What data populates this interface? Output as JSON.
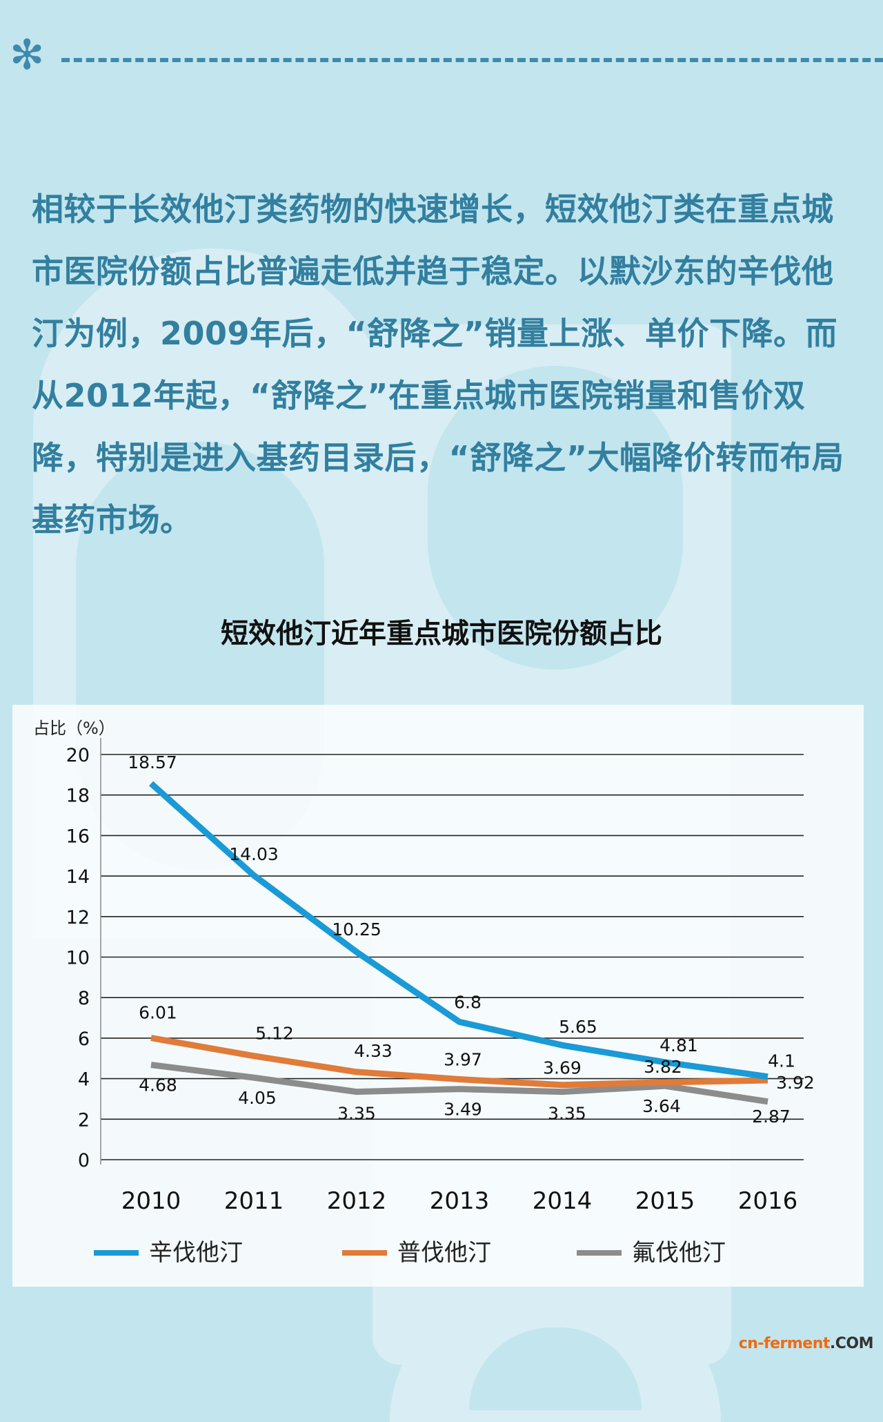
{
  "decoration": {
    "icon": "asterisk-icon",
    "glyph": "✻",
    "color": "#3f8aac"
  },
  "intro": {
    "text": "相较于长效他汀类药物的快速增长，短效他汀类在重点城市医院份额占比普遍走低并趋于稳定。以默沙东的辛伐他汀为例，2009年后，“舒降之”销量上涨、单价下降。而从2012年起，“舒降之”在重点城市医院销量和售价双降，特别是进入基药目录后，“舒降之”大幅降价转而布局基药市场。",
    "color": "#327f9f"
  },
  "chart_data": {
    "type": "line",
    "title": "短效他汀近年重点城市医院份额占比",
    "xlabel": "",
    "ylabel": "占比（%）",
    "ylim": [
      0,
      20
    ],
    "yticks": [
      0,
      2,
      4,
      6,
      8,
      10,
      12,
      14,
      16,
      18,
      20
    ],
    "grid": true,
    "legend_position": "bottom",
    "categories": [
      "2010",
      "2011",
      "2012",
      "2013",
      "2014",
      "2015",
      "2016"
    ],
    "series": [
      {
        "name": "辛伐他汀",
        "color": "#1a9ad6",
        "values": [
          18.57,
          14.03,
          10.25,
          6.8,
          5.65,
          4.81,
          4.1
        ]
      },
      {
        "name": "普伐他汀",
        "color": "#e07b39",
        "values": [
          6.01,
          5.12,
          4.33,
          3.97,
          3.69,
          3.82,
          3.92
        ]
      },
      {
        "name": "氟伐他汀",
        "color": "#8c8c8c",
        "values": [
          4.68,
          4.05,
          3.35,
          3.49,
          3.35,
          3.64,
          2.87
        ]
      }
    ]
  },
  "watermark": {
    "brand": "cn-ferment",
    "tld": ".COM"
  }
}
